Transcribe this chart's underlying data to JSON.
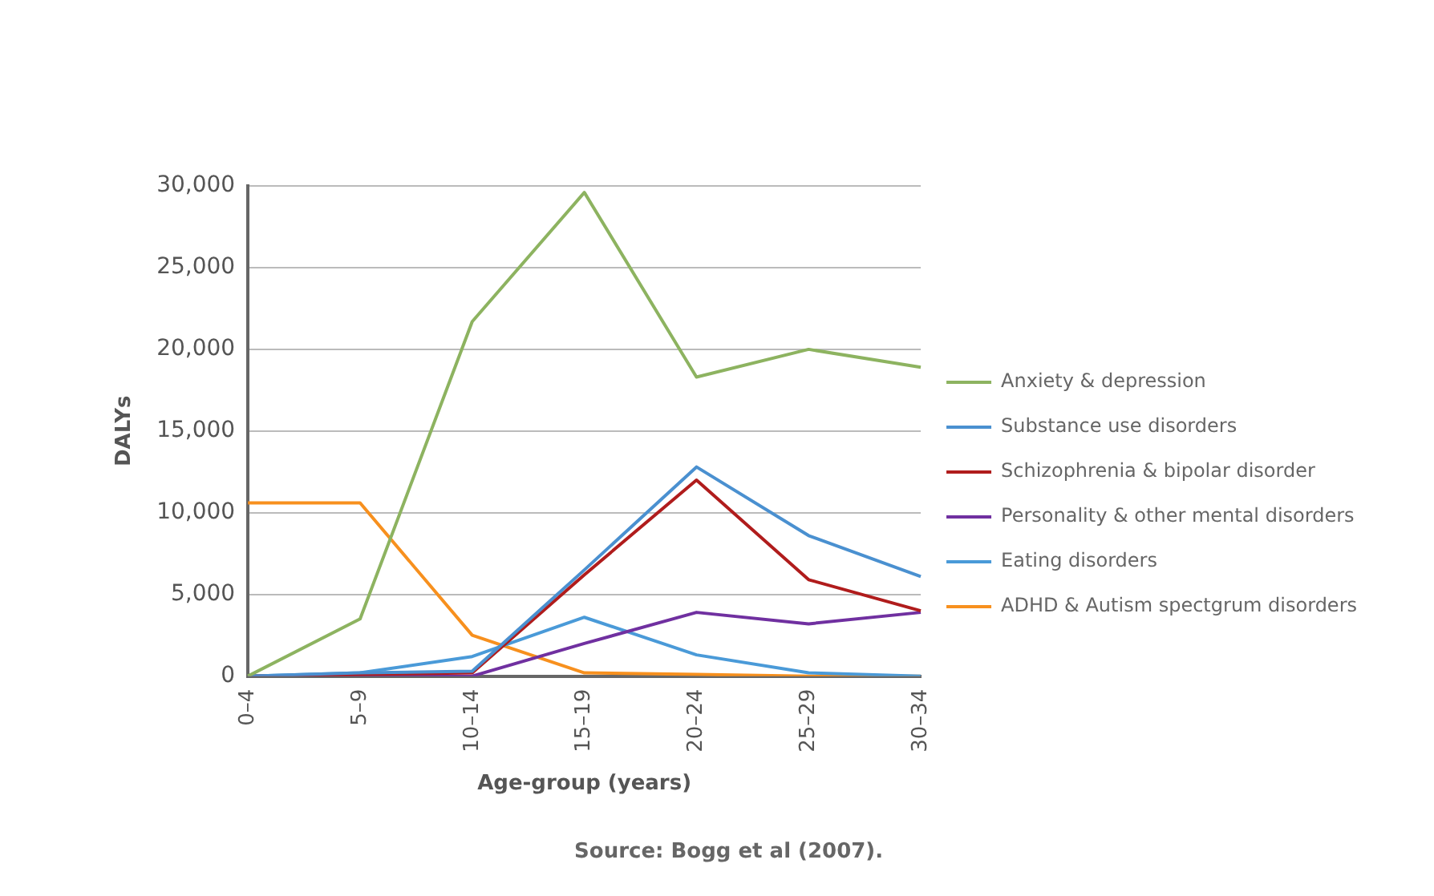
{
  "chart_data": {
    "type": "line",
    "xlabel": "Age-group (years)",
    "ylabel": "DALYs",
    "categories": [
      "0–4",
      "5–9",
      "10–14",
      "15–19",
      "20–24",
      "25–29",
      "30–34"
    ],
    "series": [
      {
        "name": "Anxiety & depression",
        "color": "#8db360",
        "values": [
          0,
          3500,
          21700,
          29600,
          18300,
          20000,
          18900
        ]
      },
      {
        "name": "Substance use disorders",
        "color": "#4a90d0",
        "values": [
          0,
          200,
          300,
          6500,
          12800,
          8600,
          6100
        ]
      },
      {
        "name": "Schizophrenia & bipolar disorder",
        "color": "#b01c1c",
        "values": [
          0,
          100,
          200,
          6200,
          12000,
          5900,
          4000
        ]
      },
      {
        "name": "Personality & other mental disorders",
        "color": "#7030a0",
        "values": [
          0,
          0,
          0,
          2000,
          3900,
          3200,
          3900
        ]
      },
      {
        "name": "Eating disorders",
        "color": "#4a9ad8",
        "values": [
          0,
          200,
          1200,
          3600,
          1300,
          200,
          0
        ]
      },
      {
        "name": "ADHD & Autism spectgrum disorders",
        "color": "#f7901e",
        "values": [
          10600,
          10600,
          2500,
          200,
          100,
          0,
          0
        ]
      }
    ],
    "ylim": [
      0,
      30000
    ],
    "yticks": [
      0,
      {
        "value": 5000,
        "label": "5,000"
      },
      {
        "value": 10000,
        "label": "10,000"
      },
      {
        "value": 15000,
        "label": "15,000"
      },
      {
        "value": 20000,
        "label": "20,000"
      },
      {
        "value": 25000,
        "label": "25,000"
      },
      {
        "value": 30000,
        "label": "30,000"
      }
    ],
    "grid": "y",
    "legend": "right",
    "marker": "none",
    "line_style": "solid",
    "annotations": [
      "Source: Bogg et al (2007)."
    ]
  }
}
